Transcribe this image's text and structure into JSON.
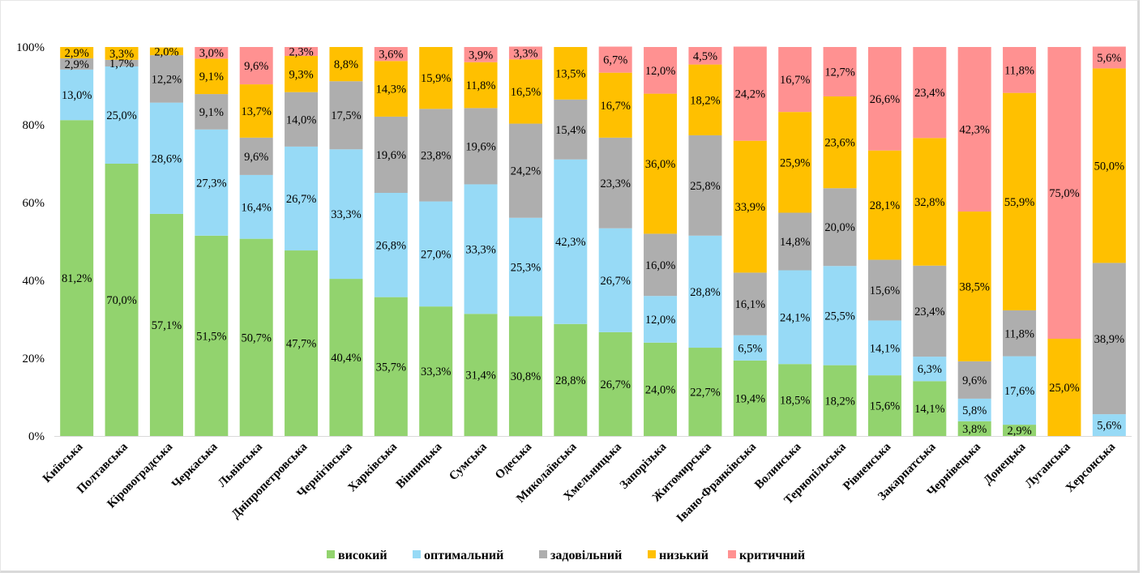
{
  "chart_data": {
    "type": "bar",
    "stacked": true,
    "normalized": true,
    "title": "",
    "xlabel": "",
    "ylabel": "",
    "ylim": [
      0,
      100
    ],
    "yticks": [
      "0%",
      "20%",
      "40%",
      "60%",
      "80%",
      "100%"
    ],
    "grid": false,
    "legend_position": "bottom",
    "categories": [
      "Київська",
      "Полтавська",
      "Кіровоградська",
      "Черкаська",
      "Львівська",
      "Дніпропетровська",
      "Чернігівська",
      "Харківська",
      "Вінницька",
      "Сумська",
      "Одеська",
      "Миколаївська",
      "Хмельницька",
      "Запорізька",
      "Житомирська",
      "Івано-Франківська",
      "Волинська",
      "Тернопільська",
      "Рівненська",
      "Закарпатська",
      "Чернівецька",
      "Донецька",
      "Луганська",
      "Херсонська"
    ],
    "series": [
      {
        "name": "високий",
        "color": "#92d36e",
        "values": [
          81.2,
          70.0,
          57.1,
          51.5,
          50.7,
          47.7,
          40.4,
          35.7,
          33.3,
          31.4,
          30.8,
          28.8,
          26.7,
          24.0,
          22.7,
          19.4,
          18.5,
          18.2,
          15.6,
          14.1,
          3.8,
          2.9,
          0,
          0
        ],
        "labels": [
          "81,2%",
          "70,0%",
          "57,1%",
          "51,5%",
          "50,7%",
          "47,7%",
          "40,4%",
          "35,7%",
          "33,3%",
          "31,4%",
          "30,8%",
          "28,8%",
          "26,7%",
          "24,0%",
          "22,7%",
          "19,4%",
          "18,5%",
          "18,2%",
          "15,6%",
          "14,1%",
          "3,8%",
          "2,9%",
          "",
          ""
        ]
      },
      {
        "name": "оптимальний",
        "color": "#97daf6",
        "values": [
          13.0,
          25.0,
          28.6,
          27.3,
          16.4,
          26.7,
          33.3,
          26.8,
          27.0,
          33.3,
          25.3,
          42.3,
          26.7,
          12.0,
          28.8,
          6.5,
          24.1,
          25.5,
          14.1,
          6.3,
          5.8,
          17.6,
          0,
          5.6
        ],
        "labels": [
          "13,0%",
          "25,0%",
          "28,6%",
          "27,3%",
          "16,4%",
          "26,7%",
          "33,3%",
          "26,8%",
          "27,0%",
          "33,3%",
          "25,3%",
          "42,3%",
          "26,7%",
          "12,0%",
          "28,8%",
          "6,5%",
          "24,1%",
          "25,5%",
          "14,1%",
          "6,3%",
          "5,8%",
          "17,6%",
          "",
          "5,6%"
        ]
      },
      {
        "name": "задовільний",
        "color": "#aeaeae",
        "values": [
          2.9,
          1.7,
          12.2,
          9.1,
          9.6,
          14.0,
          17.5,
          19.6,
          23.8,
          19.6,
          24.2,
          15.4,
          23.3,
          16.0,
          25.8,
          16.1,
          14.8,
          20.0,
          15.6,
          23.4,
          9.6,
          11.8,
          0,
          38.9
        ],
        "labels": [
          "2,9%",
          "1,7%",
          "12,2%",
          "9,1%",
          "9,6%",
          "14,0%",
          "17,5%",
          "19,6%",
          "23,8%",
          "19,6%",
          "24,2%",
          "15,4%",
          "23,3%",
          "16,0%",
          "25,8%",
          "16,1%",
          "14,8%",
          "20,0%",
          "15,6%",
          "23,4%",
          "9,6%",
          "11,8%",
          "",
          "38,9%"
        ]
      },
      {
        "name": "низький",
        "color": "#ffc000",
        "values": [
          2.9,
          3.3,
          2.0,
          9.1,
          13.7,
          9.3,
          8.8,
          14.3,
          15.9,
          11.8,
          16.5,
          13.5,
          16.7,
          36.0,
          18.2,
          33.9,
          25.9,
          23.6,
          28.1,
          32.8,
          38.5,
          55.9,
          25.0,
          50.0
        ],
        "labels": [
          "2,9%",
          "3,3%",
          "2,0%",
          "9,1%",
          "13,7%",
          "9,3%",
          "8,8%",
          "14,3%",
          "15,9%",
          "11,8%",
          "16,5%",
          "13,5%",
          "16,7%",
          "36,0%",
          "18,2%",
          "33,9%",
          "25,9%",
          "23,6%",
          "28,1%",
          "32,8%",
          "38,5%",
          "55,9%",
          "25,0%",
          "50,0%"
        ]
      },
      {
        "name": "критичний",
        "color": "#ff9191",
        "values": [
          0,
          0,
          0,
          3.0,
          9.6,
          2.3,
          0,
          3.6,
          0,
          3.9,
          3.3,
          0,
          6.7,
          12.0,
          4.5,
          24.2,
          16.7,
          12.7,
          26.6,
          23.4,
          42.3,
          11.8,
          75.0,
          5.6
        ],
        "labels": [
          "",
          "",
          "",
          "3,0%",
          "9,6%",
          "2,3%",
          "",
          "3,6%",
          "",
          "3,9%",
          "3,3%",
          "",
          "6,7%",
          "12,0%",
          "4,5%",
          "24,2%",
          "16,7%",
          "12,7%",
          "26,6%",
          "23,4%",
          "42,3%",
          "11,8%",
          "75,0%",
          "5,6%"
        ]
      }
    ]
  }
}
